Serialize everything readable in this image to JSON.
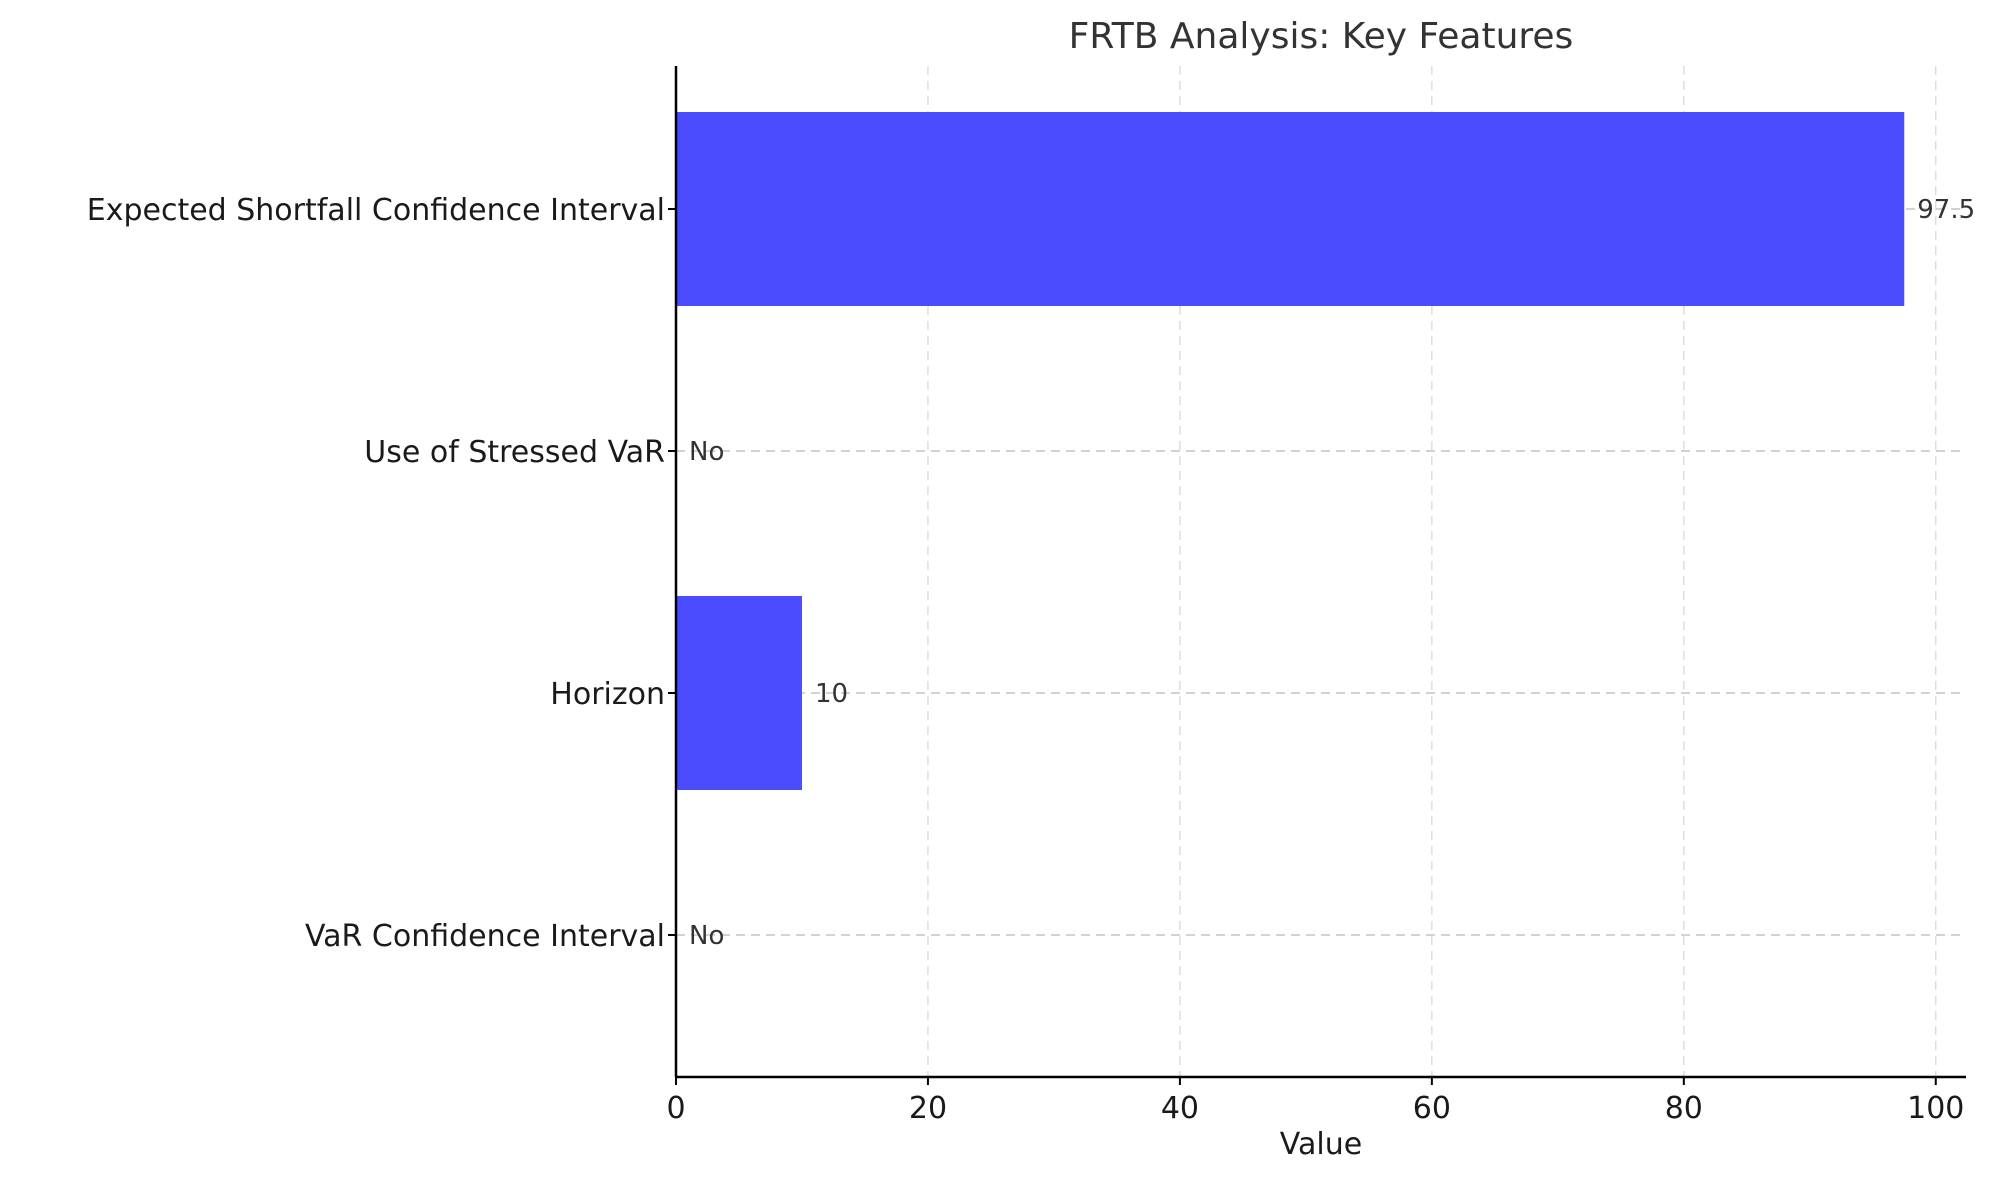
{
  "chart_data": {
    "type": "bar",
    "orientation": "horizontal",
    "title": "FRTB Analysis: Key Features",
    "xlabel": "Value",
    "ylabel": "",
    "xlim": [
      0,
      102.4
    ],
    "xticks": [
      0,
      20,
      40,
      60,
      80,
      100
    ],
    "categories": [
      "Expected Shortfall Confidence Interval",
      "Use of Stressed VaR",
      "Horizon",
      "VaR Confidence Interval"
    ],
    "values": [
      97.5,
      0,
      10,
      0
    ],
    "data_labels": [
      "97.5",
      "No",
      "10",
      "No"
    ],
    "bar_color": "#4c4cff",
    "grid": true
  }
}
